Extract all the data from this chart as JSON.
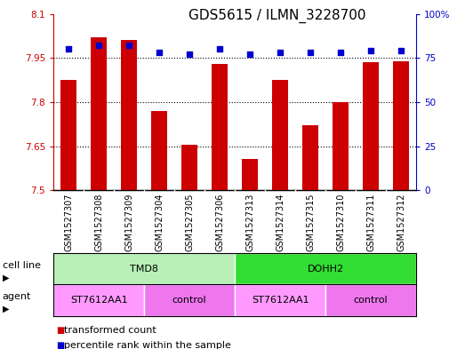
{
  "title": "GDS5615 / ILMN_3228700",
  "samples": [
    "GSM1527307",
    "GSM1527308",
    "GSM1527309",
    "GSM1527304",
    "GSM1527305",
    "GSM1527306",
    "GSM1527313",
    "GSM1527314",
    "GSM1527315",
    "GSM1527310",
    "GSM1527311",
    "GSM1527312"
  ],
  "bar_values": [
    7.875,
    8.02,
    8.01,
    7.77,
    7.655,
    7.93,
    7.605,
    7.875,
    7.72,
    7.8,
    7.935,
    7.94
  ],
  "dot_values": [
    80,
    82,
    82,
    78,
    77,
    80,
    77,
    78,
    78,
    78,
    79,
    79
  ],
  "bar_color": "#cc0000",
  "dot_color": "#0000cc",
  "ylim_left": [
    7.5,
    8.1
  ],
  "ylim_right": [
    0,
    100
  ],
  "yticks_left": [
    7.5,
    7.65,
    7.8,
    7.95,
    8.1
  ],
  "ytick_labels_left": [
    "7.5",
    "7.65",
    "7.8",
    "7.95",
    "8.1"
  ],
  "yticks_right": [
    0,
    25,
    50,
    75,
    100
  ],
  "ytick_labels_right": [
    "0",
    "25",
    "50",
    "75",
    "100%"
  ],
  "cell_line_groups": [
    {
      "label": "TMD8",
      "start": 0,
      "end": 5,
      "color": "#b8f0b8"
    },
    {
      "label": "DOHH2",
      "start": 6,
      "end": 11,
      "color": "#33dd33"
    }
  ],
  "agent_groups": [
    {
      "label": "ST7612AA1",
      "start": 0,
      "end": 2,
      "color": "#ff99ff"
    },
    {
      "label": "control",
      "start": 3,
      "end": 5,
      "color": "#ee77ee"
    },
    {
      "label": "ST7612AA1",
      "start": 6,
      "end": 8,
      "color": "#ff99ff"
    },
    {
      "label": "control",
      "start": 9,
      "end": 11,
      "color": "#ee77ee"
    }
  ],
  "plot_bg_color": "#e8e8e8",
  "label_fontsize": 8,
  "tick_fontsize": 7.5,
  "title_fontsize": 11,
  "bar_width": 0.55
}
